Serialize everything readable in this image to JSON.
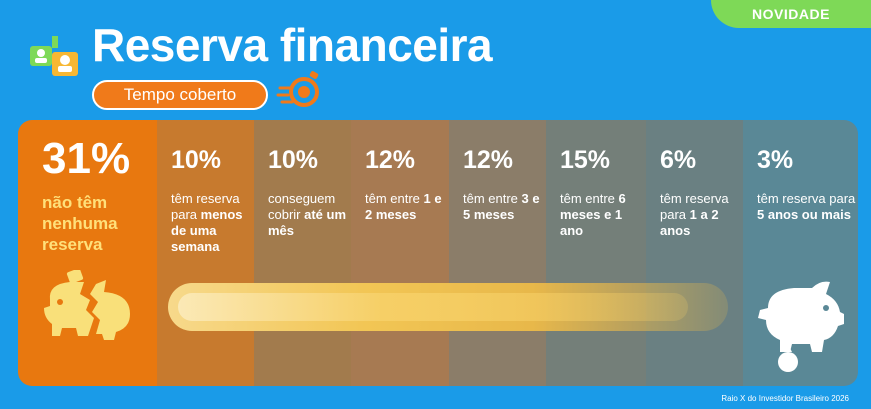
{
  "badge": "NOVIDADE",
  "title": "Reserva financeira",
  "pill": "Tempo coberto",
  "columns": [
    {
      "pct": "31%",
      "pre": "",
      "bold": "não têm nenhuma reserva",
      "post": ""
    },
    {
      "pct": "10%",
      "pre": "têm reserva para ",
      "bold": "menos de uma semana",
      "post": ""
    },
    {
      "pct": "10%",
      "pre": "conseguem cobrir ",
      "bold": "até um mês",
      "post": ""
    },
    {
      "pct": "12%",
      "pre": "têm entre ",
      "bold": "1 e 2 meses",
      "post": ""
    },
    {
      "pct": "12%",
      "pre": "têm entre ",
      "bold": "3 e 5 meses",
      "post": ""
    },
    {
      "pct": "15%",
      "pre": "têm entre ",
      "bold": "6 meses e 1 ano",
      "post": ""
    },
    {
      "pct": "6%",
      "pre": "têm reserva para ",
      "bold": "1 a 2 anos",
      "post": ""
    },
    {
      "pct": "3%",
      "pre": "têm reserva para ",
      "bold": "5 anos ou mais",
      "post": ""
    }
  ],
  "footer": "Raio X do Investidor Brasileiro 2026",
  "colors": {
    "background": "#1a9be8",
    "accent": "#f07a1a",
    "badge": "#7ed957"
  }
}
